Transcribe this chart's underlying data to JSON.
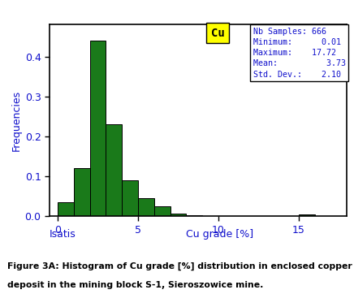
{
  "xlabel": "Cu grade [%]",
  "ylabel": "Frequencies",
  "bar_color": "#1a7a1a",
  "bar_edge_color": "#000000",
  "bar_left_label": "Isatis",
  "xlim": [
    -0.5,
    18
  ],
  "ylim": [
    0,
    0.48
  ],
  "yticks": [
    0.0,
    0.1,
    0.2,
    0.3,
    0.4
  ],
  "xticks": [
    0,
    5,
    10,
    15
  ],
  "bin_edges": [
    0.0,
    1.0,
    2.0,
    3.0,
    4.0,
    5.0,
    6.0,
    7.0,
    8.0,
    9.0,
    10.0,
    11.0,
    12.0,
    13.0,
    14.0,
    15.0,
    16.0,
    17.0,
    18.0
  ],
  "bin_heights": [
    0.035,
    0.12,
    0.44,
    0.23,
    0.09,
    0.045,
    0.025,
    0.007,
    0.003,
    0.001,
    0.0,
    0.0,
    0.0,
    0.0,
    0.0,
    0.006,
    0.0,
    0.0
  ],
  "stats_lines": [
    "Nb Samples: 666",
    "Minimum:      0.01",
    "Maximum:    17.72",
    "Mean:          3.73",
    "Std. Dev.:    2.10"
  ],
  "cu_label": "Cu",
  "cu_bg_color": "#ffff00",
  "figure_caption_line1": "Figure 3A: Histogram of Cu grade [%] distribution in enclosed copper ore",
  "figure_caption_line2": "deposit in the mining block S-1, Sieroszowice mine.",
  "background_color": "#ffffff",
  "text_color_blue": "#1010cc",
  "text_color_black": "#000000",
  "stats_text": "Nb Samples: 666\nMinimum:      0.01\nMaximum:    17.72\nMean:          3.73\nStd. Dev.:    2.10"
}
